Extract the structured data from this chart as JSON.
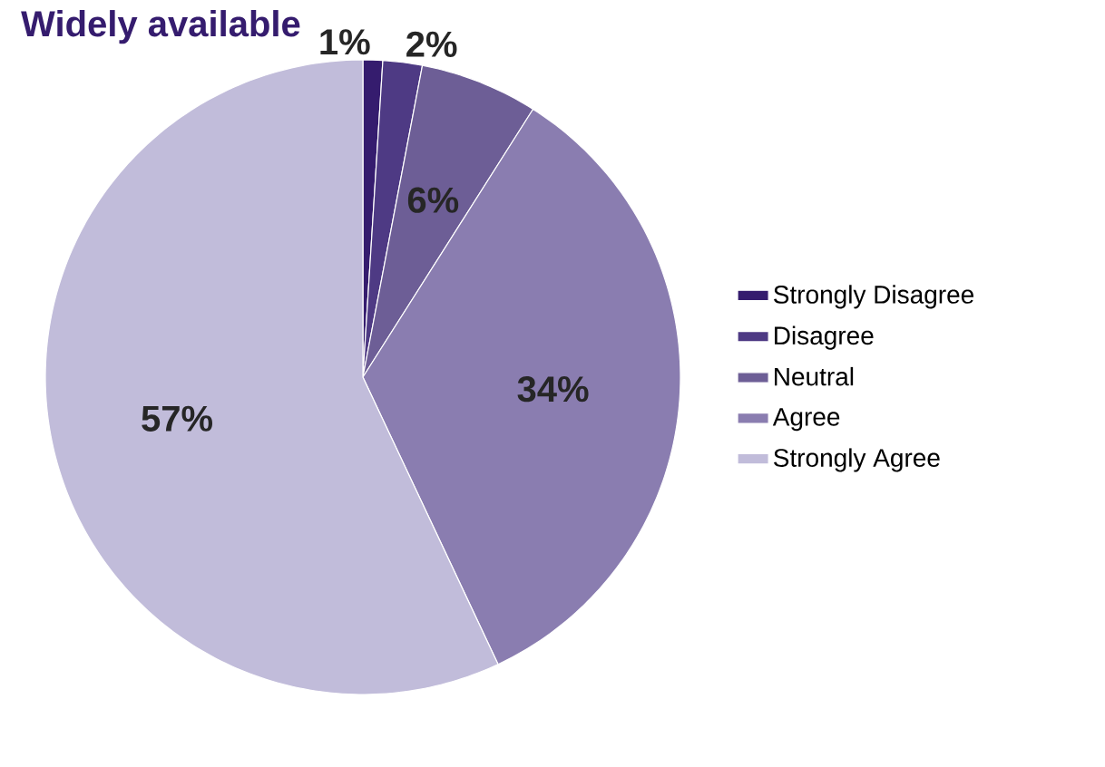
{
  "chart_data": {
    "type": "pie",
    "title": "Widely available",
    "categories": [
      "Strongly Disagree",
      "Disagree",
      "Neutral",
      "Agree",
      "Strongly Agree"
    ],
    "values": [
      1,
      2,
      6,
      34,
      57
    ],
    "colors": [
      "#351c6e",
      "#4e3a84",
      "#6d5e96",
      "#8a7db0",
      "#c1bcda"
    ],
    "value_labels": [
      "1%",
      "2%",
      "6%",
      "34%",
      "57%"
    ],
    "legend": "right"
  }
}
